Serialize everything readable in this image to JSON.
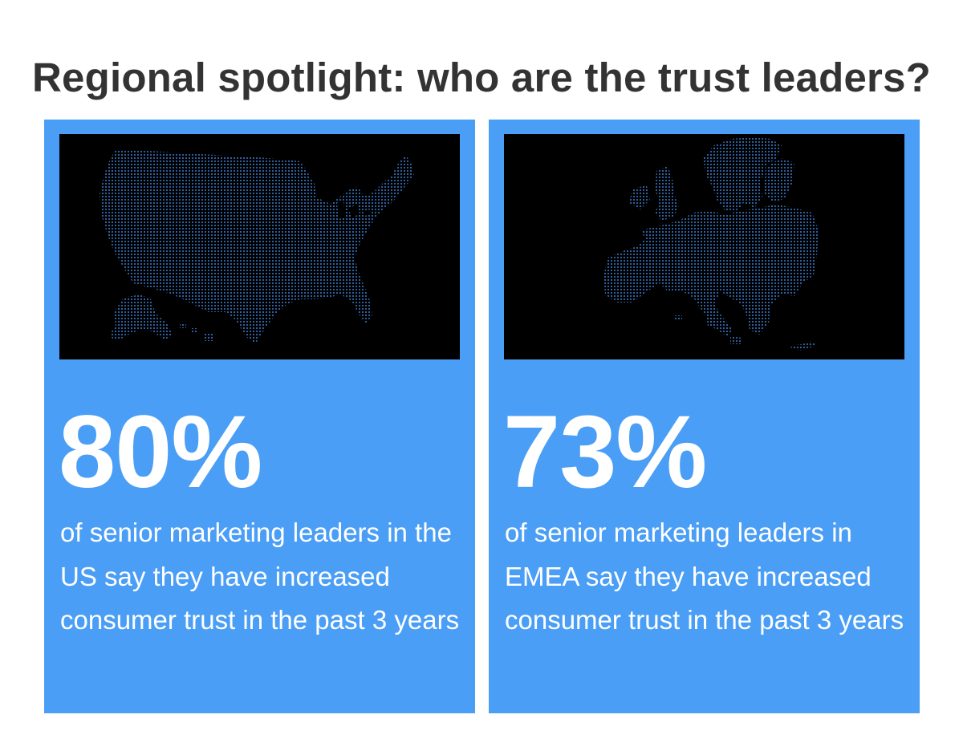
{
  "title": "Regional spotlight: who are the trust leaders?",
  "colors": {
    "card_background": "#4a9ef5",
    "map_background": "#000000",
    "map_dots": "#3a78c6",
    "title_text": "#333333",
    "card_text": "#ffffff"
  },
  "cards": [
    {
      "region": "US",
      "map_icon": "dotted-us-map",
      "stat": "80%",
      "caption": "of senior marketing leaders in the US say they have increased consumer trust in the past 3 years"
    },
    {
      "region": "EMEA",
      "map_icon": "dotted-europe-map",
      "stat": "73%",
      "caption": "of senior marketing leaders in EMEA say they have increased consumer trust in the past 3 years"
    }
  ]
}
